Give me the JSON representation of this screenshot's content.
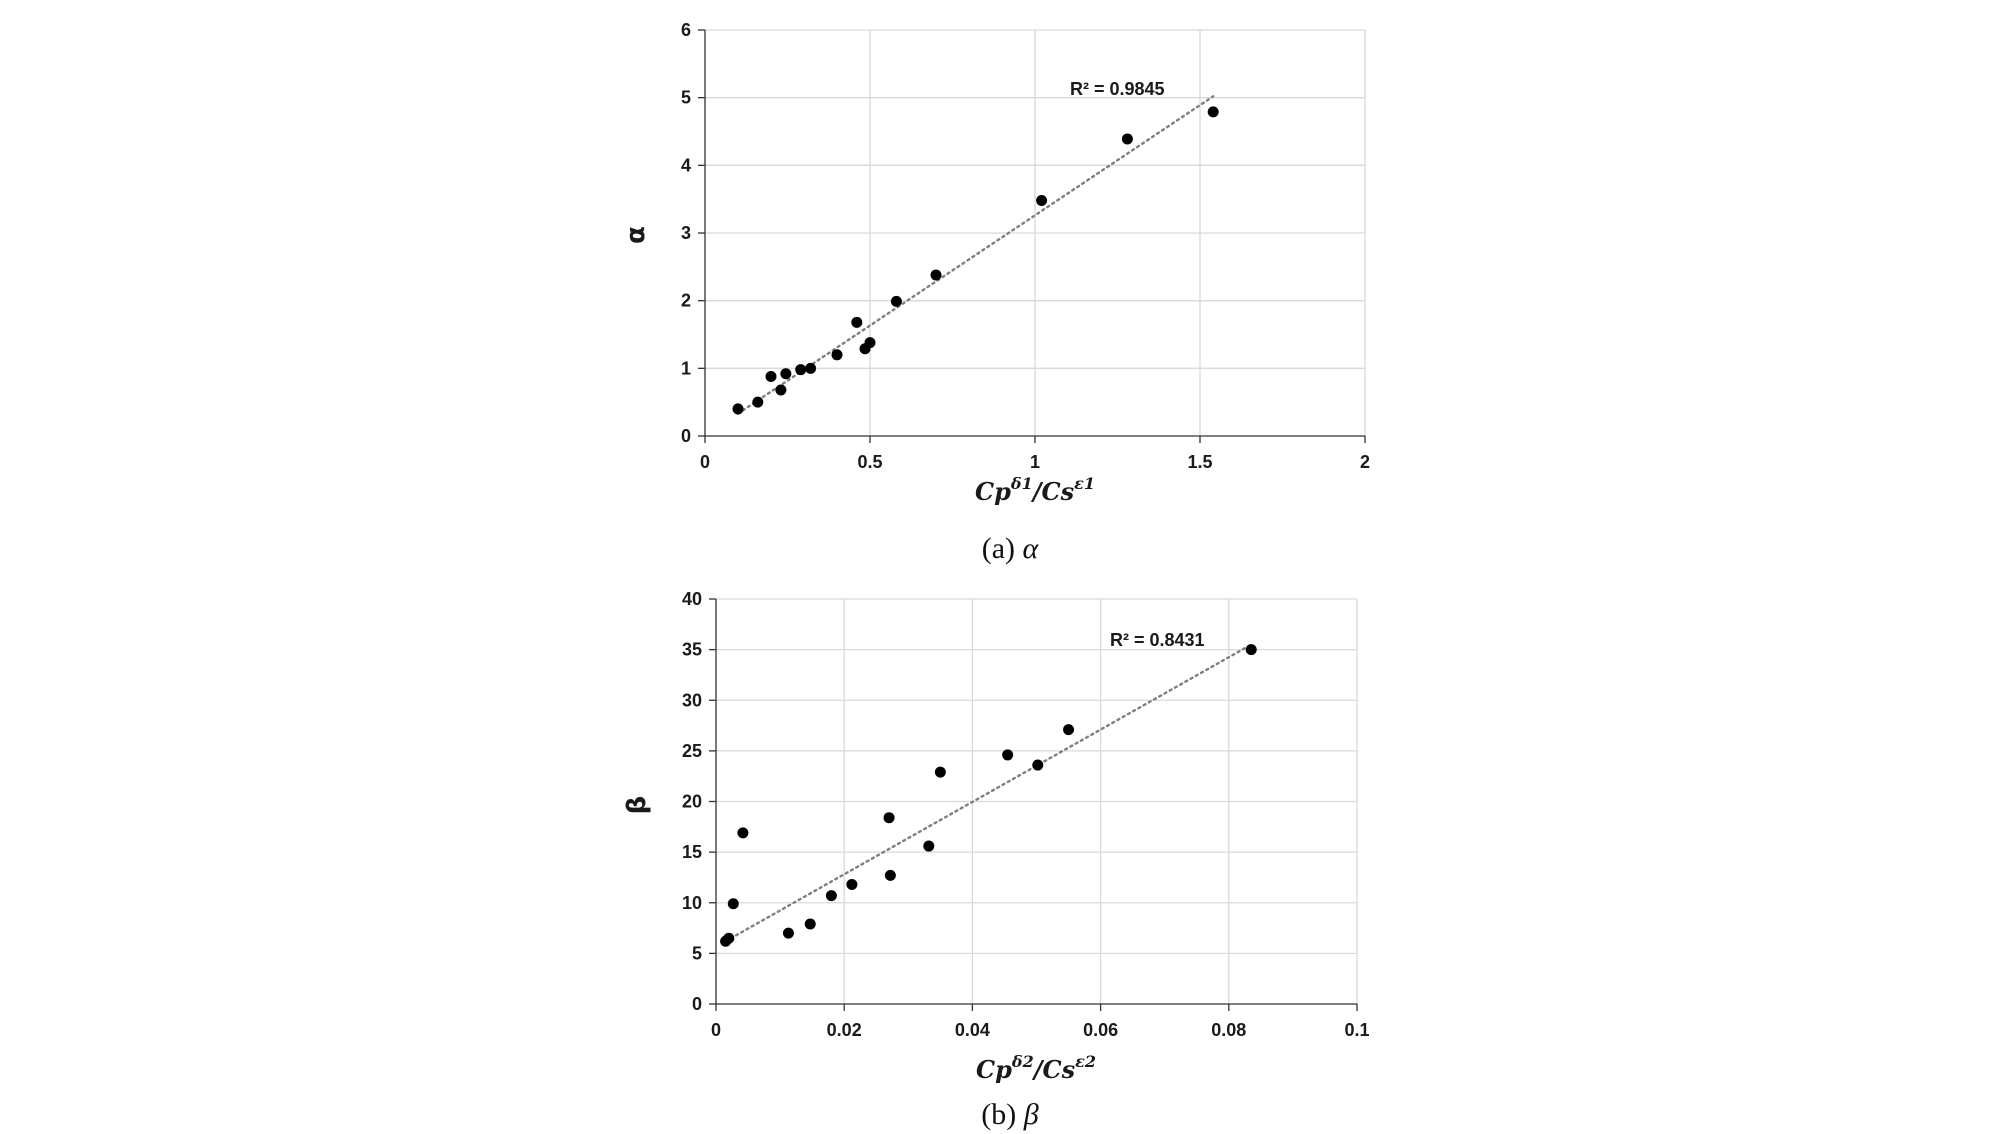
{
  "chart_data": [
    {
      "type": "scatter",
      "caption_prefix": "(a) ",
      "caption_symbol": "α",
      "ylabel": "α",
      "xlabel_main": [
        "Cp",
        "/Cs"
      ],
      "xlabel_sups": [
        "δ1",
        "ε1"
      ],
      "xlim": [
        0,
        2
      ],
      "ylim": [
        0,
        6
      ],
      "xticks": [
        0,
        0.5,
        1,
        1.5,
        2
      ],
      "xtick_labels": [
        "0",
        "0.5",
        "1",
        "1.5",
        "2"
      ],
      "yticks": [
        0,
        1,
        2,
        3,
        4,
        5,
        6
      ],
      "ytick_labels": [
        "0",
        "1",
        "2",
        "3",
        "4",
        "5",
        "6"
      ],
      "grid": true,
      "trendline": {
        "style": "dotted linear",
        "x": [
          0.1,
          1.54
        ],
        "y": [
          0.33,
          5.02
        ]
      },
      "annotation": "R² = 0.9845",
      "points": [
        {
          "x": 0.1,
          "y": 0.4
        },
        {
          "x": 0.16,
          "y": 0.5
        },
        {
          "x": 0.2,
          "y": 0.88
        },
        {
          "x": 0.23,
          "y": 0.68
        },
        {
          "x": 0.245,
          "y": 0.92
        },
        {
          "x": 0.29,
          "y": 0.98
        },
        {
          "x": 0.32,
          "y": 1.0
        },
        {
          "x": 0.4,
          "y": 1.2
        },
        {
          "x": 0.46,
          "y": 1.68
        },
        {
          "x": 0.485,
          "y": 1.29
        },
        {
          "x": 0.5,
          "y": 1.38
        },
        {
          "x": 0.58,
          "y": 1.99
        },
        {
          "x": 0.7,
          "y": 2.38
        },
        {
          "x": 1.02,
          "y": 3.48
        },
        {
          "x": 1.28,
          "y": 4.39
        },
        {
          "x": 1.54,
          "y": 4.79
        }
      ]
    },
    {
      "type": "scatter",
      "caption_prefix": "(b) ",
      "caption_symbol": "β",
      "ylabel": "β",
      "xlabel_main": [
        "Cp",
        "/Cs"
      ],
      "xlabel_sups": [
        "δ2",
        "ε2"
      ],
      "xlim": [
        0,
        0.1
      ],
      "ylim": [
        0,
        40
      ],
      "xticks": [
        0,
        0.02,
        0.04,
        0.06,
        0.08,
        0.1
      ],
      "xtick_labels": [
        "0",
        "0.02",
        "0.04",
        "0.06",
        "0.08",
        "0.1"
      ],
      "yticks": [
        0,
        5,
        10,
        15,
        20,
        25,
        30,
        35,
        40
      ],
      "ytick_labels": [
        "0",
        "5",
        "10",
        "15",
        "20",
        "25",
        "30",
        "35",
        "40"
      ],
      "grid": true,
      "trendline": {
        "style": "dotted linear",
        "x": [
          0.0015,
          0.0835
        ],
        "y": [
          6.2,
          35.5
        ]
      },
      "annotation": "R² = 0.8431",
      "points": [
        {
          "x": 0.0015,
          "y": 6.2
        },
        {
          "x": 0.002,
          "y": 6.5
        },
        {
          "x": 0.0027,
          "y": 9.9
        },
        {
          "x": 0.0042,
          "y": 16.9
        },
        {
          "x": 0.0113,
          "y": 7.0
        },
        {
          "x": 0.0147,
          "y": 7.9
        },
        {
          "x": 0.018,
          "y": 10.7
        },
        {
          "x": 0.0212,
          "y": 11.8
        },
        {
          "x": 0.027,
          "y": 18.4
        },
        {
          "x": 0.0272,
          "y": 12.7
        },
        {
          "x": 0.0332,
          "y": 15.6
        },
        {
          "x": 0.035,
          "y": 22.9
        },
        {
          "x": 0.0455,
          "y": 24.6
        },
        {
          "x": 0.0502,
          "y": 23.6
        },
        {
          "x": 0.055,
          "y": 27.1
        },
        {
          "x": 0.0835,
          "y": 35.0
        }
      ]
    }
  ]
}
